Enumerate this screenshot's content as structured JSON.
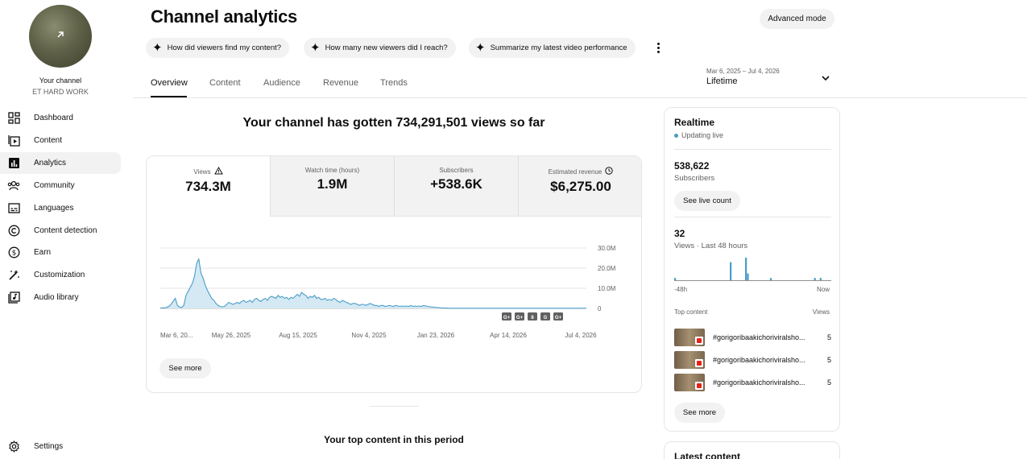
{
  "sidebar": {
    "channel_title": "Your channel",
    "channel_name": "ET HARD WORK",
    "items": [
      {
        "label": "Dashboard",
        "icon": "dashboard-icon"
      },
      {
        "label": "Content",
        "icon": "content-icon"
      },
      {
        "label": "Analytics",
        "icon": "analytics-icon",
        "active": true
      },
      {
        "label": "Community",
        "icon": "community-icon"
      },
      {
        "label": "Languages",
        "icon": "languages-icon"
      },
      {
        "label": "Content detection",
        "icon": "copyright-icon"
      },
      {
        "label": "Earn",
        "icon": "earn-icon"
      },
      {
        "label": "Customization",
        "icon": "customization-icon"
      },
      {
        "label": "Audio library",
        "icon": "audio-library-icon"
      }
    ],
    "settings_label": "Settings"
  },
  "header": {
    "title": "Channel analytics",
    "advanced_mode": "Advanced mode",
    "chips": [
      "How did viewers find my content?",
      "How many new viewers did I reach?",
      "Summarize my latest video performance"
    ],
    "tabs": [
      "Overview",
      "Content",
      "Audience",
      "Revenue",
      "Trends"
    ],
    "date_range": "Mar 6, 2025 – Jul 4, 2026",
    "date_label": "Lifetime"
  },
  "overview": {
    "headline": "Your channel has gotten 734,291,501 views so far",
    "metrics": [
      {
        "label": "Views",
        "value": "734.3M"
      },
      {
        "label": "Watch time (hours)",
        "value": "1.9M"
      },
      {
        "label": "Subscribers",
        "value": "+538.6K"
      },
      {
        "label": "Estimated revenue",
        "value": "$6,275.00"
      }
    ],
    "see_more": "See more",
    "top_content_title": "Your top content in this period"
  },
  "chart_data": {
    "type": "area",
    "xlabels": [
      "Mar 6, 20...",
      "May 26, 2025",
      "Aug 15, 2025",
      "Nov 4, 2025",
      "Jan 23, 2026",
      "Apr 14, 2026",
      "Jul 4, 2026"
    ],
    "ytick_labels": [
      "30.0M",
      "20.0M",
      "10.0M",
      "0"
    ],
    "ylim": [
      0,
      30000000
    ],
    "series": [
      {
        "values": [
          0.2,
          0.3,
          0.3,
          0.5,
          1.0,
          2.0,
          3.5,
          5.0,
          1.5,
          0.7,
          0.5,
          1.5,
          6.5,
          8.5,
          10.5,
          12.5,
          16.0,
          22.5,
          24.5,
          17.5,
          15.0,
          11.5,
          9.0,
          7.0,
          5.0,
          4.0,
          2.5,
          1.5,
          1.0,
          0.8,
          1.0,
          2.0,
          3.0,
          2.5,
          2.0,
          2.5,
          3.0,
          2.5,
          3.5,
          4.0,
          3.0,
          3.5,
          4.0,
          3.0,
          4.5,
          5.0,
          4.0,
          3.5,
          4.5,
          5.0,
          4.0,
          5.5,
          6.0,
          5.5,
          5.0,
          6.5,
          5.5,
          6.0,
          5.0,
          5.5,
          4.5,
          5.5,
          5.0,
          6.0,
          7.0,
          6.0,
          8.0,
          7.0,
          6.5,
          5.0,
          6.0,
          5.5,
          6.5,
          5.0,
          5.5,
          4.5,
          4.5,
          5.0,
          4.0,
          4.5,
          4.0,
          5.0,
          4.5,
          3.5,
          3.0,
          4.0,
          3.5,
          3.0,
          2.5,
          2.0,
          2.5,
          2.5,
          2.0,
          1.5,
          2.0,
          2.0,
          1.5,
          2.0,
          2.5,
          2.0,
          1.5,
          1.5,
          1.0,
          1.5,
          1.5,
          1.0,
          1.2,
          1.5,
          1.2,
          1.0,
          1.5,
          1.2,
          1.0,
          1.2,
          1.0,
          1.2,
          1.0,
          1.5,
          1.0,
          1.2,
          1.0,
          1.2,
          1.0,
          1.5,
          1.2,
          1.0,
          0.8,
          0.7,
          0.6,
          0.5,
          0.4,
          0.3,
          0.2,
          0.2,
          0.2,
          0.1,
          0.1,
          0.1,
          0.1,
          0.1,
          0.1,
          0.1,
          0.1,
          0.1,
          0.1,
          0.1,
          0.1,
          0.1,
          0.1,
          0.1,
          0.1,
          0.1,
          0.1,
          0.1,
          0.1,
          0.1,
          0.1,
          0.1,
          0.1,
          0.1,
          0.1,
          0.1,
          0.1,
          0.1,
          0.1,
          0.1,
          0.1,
          0.1,
          0.1,
          0.1,
          0.1,
          0.1,
          0.1,
          0.1,
          0.1,
          0.1,
          0.1,
          0.1,
          0.1,
          0.1,
          0.1,
          0.1,
          0.1,
          0.1,
          0.1,
          0.1,
          0.1,
          0.1,
          0.1,
          0.1,
          0.1,
          0.1,
          0.1,
          0.1,
          0.1,
          0.1,
          0.1,
          0.1,
          0.1,
          0.1
        ]
      }
    ],
    "value_unit": "millions of views",
    "markers": [
      "G+",
      "G+",
      "8",
      "G",
      "G+"
    ],
    "colors": {
      "line": "#4a9cc7",
      "fill": "#d4e9f3"
    }
  },
  "realtime": {
    "title": "Realtime",
    "status": "Updating live",
    "subscribers_value": "538,622",
    "subscribers_label": "Subscribers",
    "see_live_count": "See live count",
    "views_value": "32",
    "views_label": "Views · Last 48 hours",
    "axis_start": "-48h",
    "axis_end": "Now",
    "top_content_label": "Top content",
    "views_col_label": "Views",
    "top_content": [
      {
        "title": "#gorigoribaakichoriviralsho...",
        "views": "5"
      },
      {
        "title": "#gorigoribaakichoriviralsho...",
        "views": "5"
      },
      {
        "title": "#gorigoribaakichoriviralsho...",
        "views": "5"
      }
    ],
    "see_more": "See more",
    "bars": [
      1,
      0,
      0,
      0,
      0,
      0,
      0,
      0,
      0,
      0,
      0,
      0,
      0,
      0,
      0,
      0,
      0,
      0,
      0,
      0,
      0,
      0,
      0,
      0,
      0,
      0,
      0,
      0,
      0,
      8,
      0,
      0,
      0,
      0,
      0,
      0,
      0,
      10,
      3,
      0,
      0,
      0,
      0,
      0,
      0,
      0,
      0,
      0,
      0,
      0,
      1,
      0,
      0,
      0,
      0,
      0,
      0,
      0,
      0,
      0,
      0,
      0,
      0,
      0,
      0,
      0,
      0,
      0,
      0,
      0,
      0,
      0,
      0,
      1,
      0,
      0,
      1,
      0,
      0,
      0,
      0,
      0
    ],
    "latest_content_title": "Latest content"
  }
}
